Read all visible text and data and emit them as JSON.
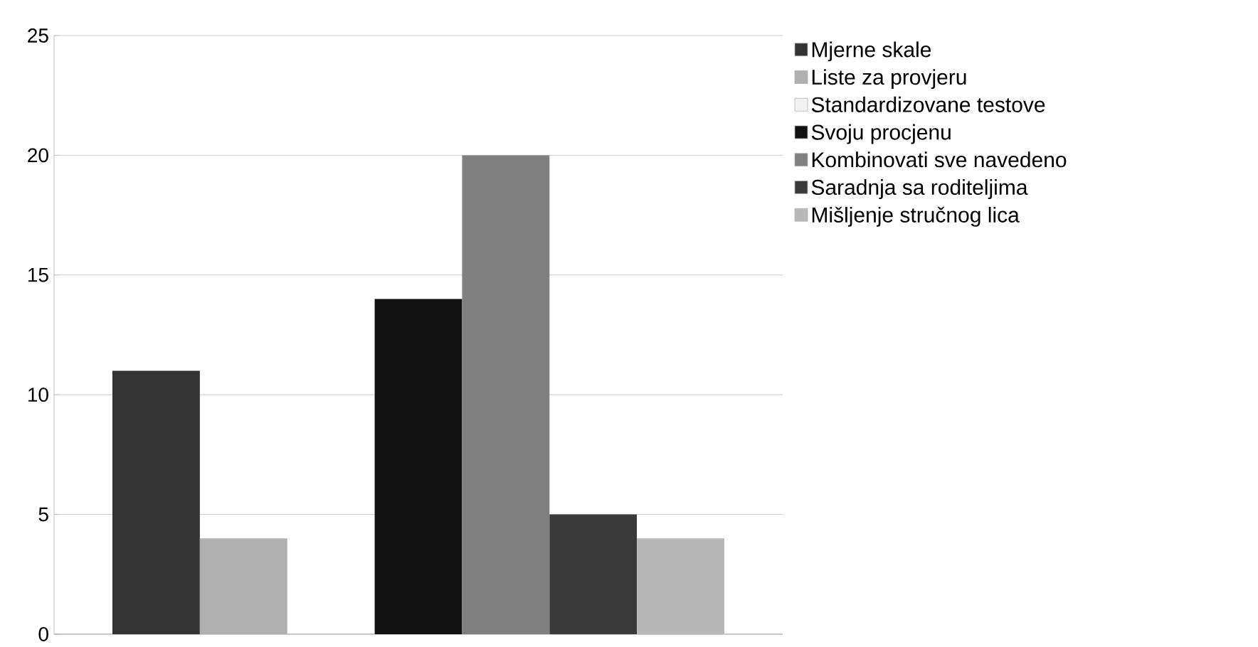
{
  "chart_data": {
    "type": "bar",
    "categories": [
      null
    ],
    "series": [
      {
        "name": "Mjerne skale",
        "color": "#333333",
        "values": [
          11
        ]
      },
      {
        "name": "Liste za provjeru",
        "color": "#b0b0b0",
        "values": [
          4
        ]
      },
      {
        "name": "Standardizovane testove",
        "color": "#f2f2f2",
        "values": [
          0
        ]
      },
      {
        "name": "Svoju procjenu",
        "color": "#111111",
        "values": [
          14
        ]
      },
      {
        "name": "Kombinovati sve navedeno",
        "color": "#808080",
        "values": [
          20
        ]
      },
      {
        "name": "Saradnja sa roditeljima",
        "color": "#3a3a3a",
        "values": [
          5
        ]
      },
      {
        "name": "Mišljenje stručnog lica",
        "color": "#b8b8b8",
        "values": [
          4
        ]
      }
    ],
    "ylim": [
      0,
      25
    ],
    "yticks": [
      0,
      5,
      10,
      15,
      20,
      25
    ],
    "grid": "y",
    "legend": "right"
  }
}
